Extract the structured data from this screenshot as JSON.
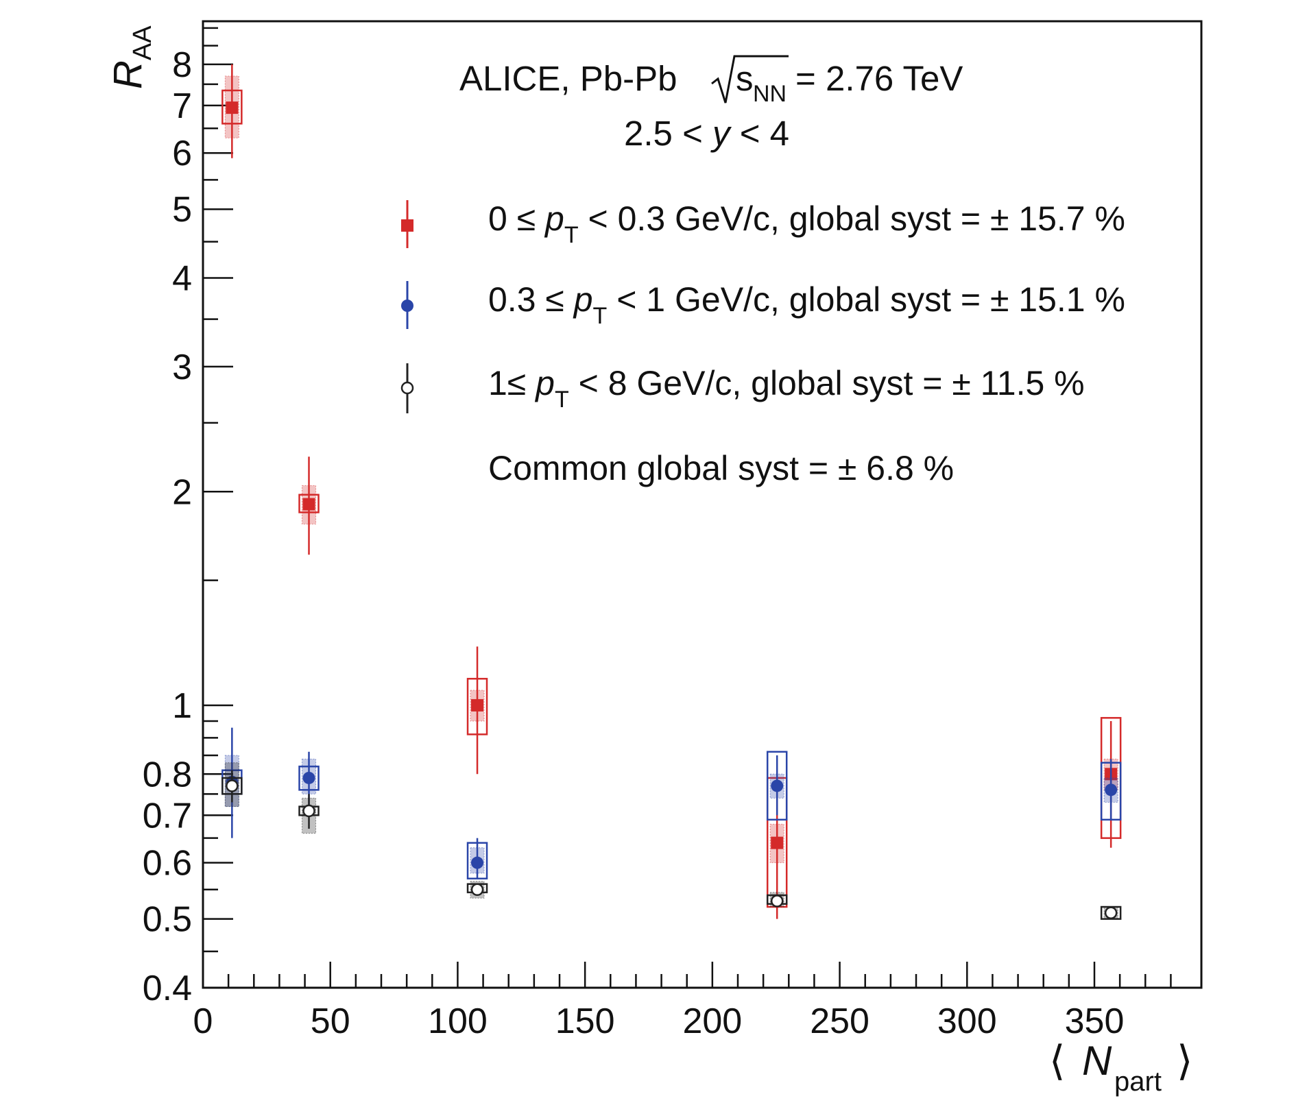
{
  "chart_data": {
    "type": "scatter",
    "title": {
      "experiment": "ALICE, Pb-Pb",
      "sqrt": "s",
      "sqrt_sub": "NN",
      "energy": "= 2.76 TeV",
      "rapidity_prefix": "2.5 <",
      "rapidity_var": "y",
      "rapidity_suffix": "< 4"
    },
    "ylabel": {
      "main": "R",
      "sub": "AA"
    },
    "xlabel": {
      "left": "⟨",
      "main": "N",
      "sub": "part",
      "right": "⟩"
    },
    "xlim": [
      0,
      392
    ],
    "ylim": [
      0.4,
      9.2
    ],
    "yscale": "log",
    "x_ticks": [
      0,
      50,
      100,
      150,
      200,
      250,
      300,
      350
    ],
    "x_tick_labels": [
      "0",
      "50",
      "100",
      "150",
      "200",
      "250",
      "300",
      "350"
    ],
    "y_ticks": [
      0.4,
      0.5,
      0.6,
      0.7,
      0.8,
      1,
      2,
      3,
      4,
      5,
      6,
      7,
      8
    ],
    "y_tick_labels": [
      "0.4",
      "0.5",
      "0.6",
      "0.7",
      "0.8",
      "1",
      "2",
      "3",
      "4",
      "5",
      "6",
      "7",
      "8"
    ],
    "legend": [
      {
        "pre": "0 ≤ ",
        "var": "p",
        "sub": "T",
        "post": " < 0.3 GeV/c, global syst = ± 15.7 %"
      },
      {
        "pre": "0.3 ≤ ",
        "var": "p",
        "sub": "T",
        "post": " < 1 GeV/c, global syst = ± 15.1 %"
      },
      {
        "pre": "1≤ ",
        "var": "p",
        "sub": "T",
        "post": " < 8 GeV/c, global syst = ± 11.5 %"
      }
    ],
    "common_syst": "Common global syst = ± 6.8 %",
    "series": [
      {
        "name": "0 ≤ pT < 0.3 GeV/c",
        "color": "#d42a2a",
        "marker": "square",
        "x": [
          11.4,
          41.6,
          107.7,
          225.4,
          356.5
        ],
        "y": [
          6.95,
          1.92,
          1.0,
          0.64,
          0.8
        ],
        "stat_low": [
          5.9,
          1.63,
          0.8,
          0.5,
          0.63
        ],
        "stat_high": [
          8.0,
          2.24,
          1.21,
          0.79,
          0.95
        ],
        "syst_low": [
          6.6,
          1.87,
          0.91,
          0.52,
          0.65
        ],
        "syst_high": [
          7.35,
          1.98,
          1.09,
          0.79,
          0.96
        ],
        "uncorr_low": [
          6.3,
          1.8,
          0.95,
          0.6,
          0.76
        ],
        "uncorr_high": [
          7.7,
          2.04,
          1.05,
          0.68,
          0.84
        ]
      },
      {
        "name": "0.3 ≤ pT < 1 GeV/c",
        "color": "#2a45a8",
        "marker": "circle",
        "x": [
          11.4,
          41.6,
          107.7,
          225.4,
          356.5
        ],
        "y": [
          0.78,
          0.79,
          0.6,
          0.77,
          0.76
        ],
        "stat_low": [
          0.65,
          0.72,
          0.57,
          0.7,
          0.69
        ],
        "stat_high": [
          0.93,
          0.86,
          0.65,
          0.85,
          0.84
        ],
        "syst_low": [
          0.75,
          0.76,
          0.57,
          0.69,
          0.69
        ],
        "syst_high": [
          0.81,
          0.82,
          0.64,
          0.86,
          0.83
        ],
        "uncorr_low": [
          0.72,
          0.75,
          0.58,
          0.74,
          0.73
        ],
        "uncorr_high": [
          0.85,
          0.84,
          0.63,
          0.8,
          0.79
        ]
      },
      {
        "name": "1≤ pT < 8 GeV/c",
        "color": "#222222",
        "marker": "open-circle",
        "x": [
          11.4,
          41.6,
          107.7,
          225.4,
          356.5
        ],
        "y": [
          0.77,
          0.71,
          0.55,
          0.53,
          0.51
        ],
        "stat_low": [
          0.73,
          0.67,
          0.54,
          0.52,
          0.5
        ],
        "stat_high": [
          0.81,
          0.75,
          0.56,
          0.54,
          0.52
        ],
        "syst_low": [
          0.75,
          0.7,
          0.545,
          0.525,
          0.5
        ],
        "syst_high": [
          0.79,
          0.72,
          0.56,
          0.54,
          0.52
        ],
        "uncorr_low": [
          0.72,
          0.66,
          0.535,
          0.52,
          0.5
        ],
        "uncorr_high": [
          0.83,
          0.74,
          0.565,
          0.545,
          0.52
        ]
      }
    ]
  }
}
